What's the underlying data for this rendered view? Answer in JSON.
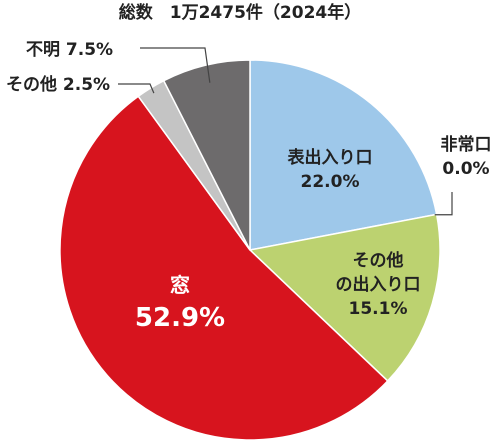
{
  "chart_data": {
    "type": "pie",
    "title": "総数　1万2475件（2024年）",
    "slices": [
      {
        "label": "表出入り口",
        "value": 22.0,
        "value_text": "22.0%",
        "color": "#9ec8ea"
      },
      {
        "label": "非常口",
        "value": 0.0,
        "value_text": "0.0%",
        "color": "#b9b9b9"
      },
      {
        "label": "その他の出入り口",
        "value": 15.1,
        "value_text": "15.1%",
        "color": "#bcd270"
      },
      {
        "label": "窓",
        "value": 52.9,
        "value_text": "52.9%",
        "color": "#d7141e"
      },
      {
        "label": "その他",
        "value": 2.5,
        "value_text": "2.5%",
        "color": "#c4c4c4"
      },
      {
        "label": "不明",
        "value": 7.5,
        "value_text": "7.5%",
        "color": "#6d6b6c"
      }
    ],
    "legend": "none",
    "direction": "clockwise-from-top"
  }
}
